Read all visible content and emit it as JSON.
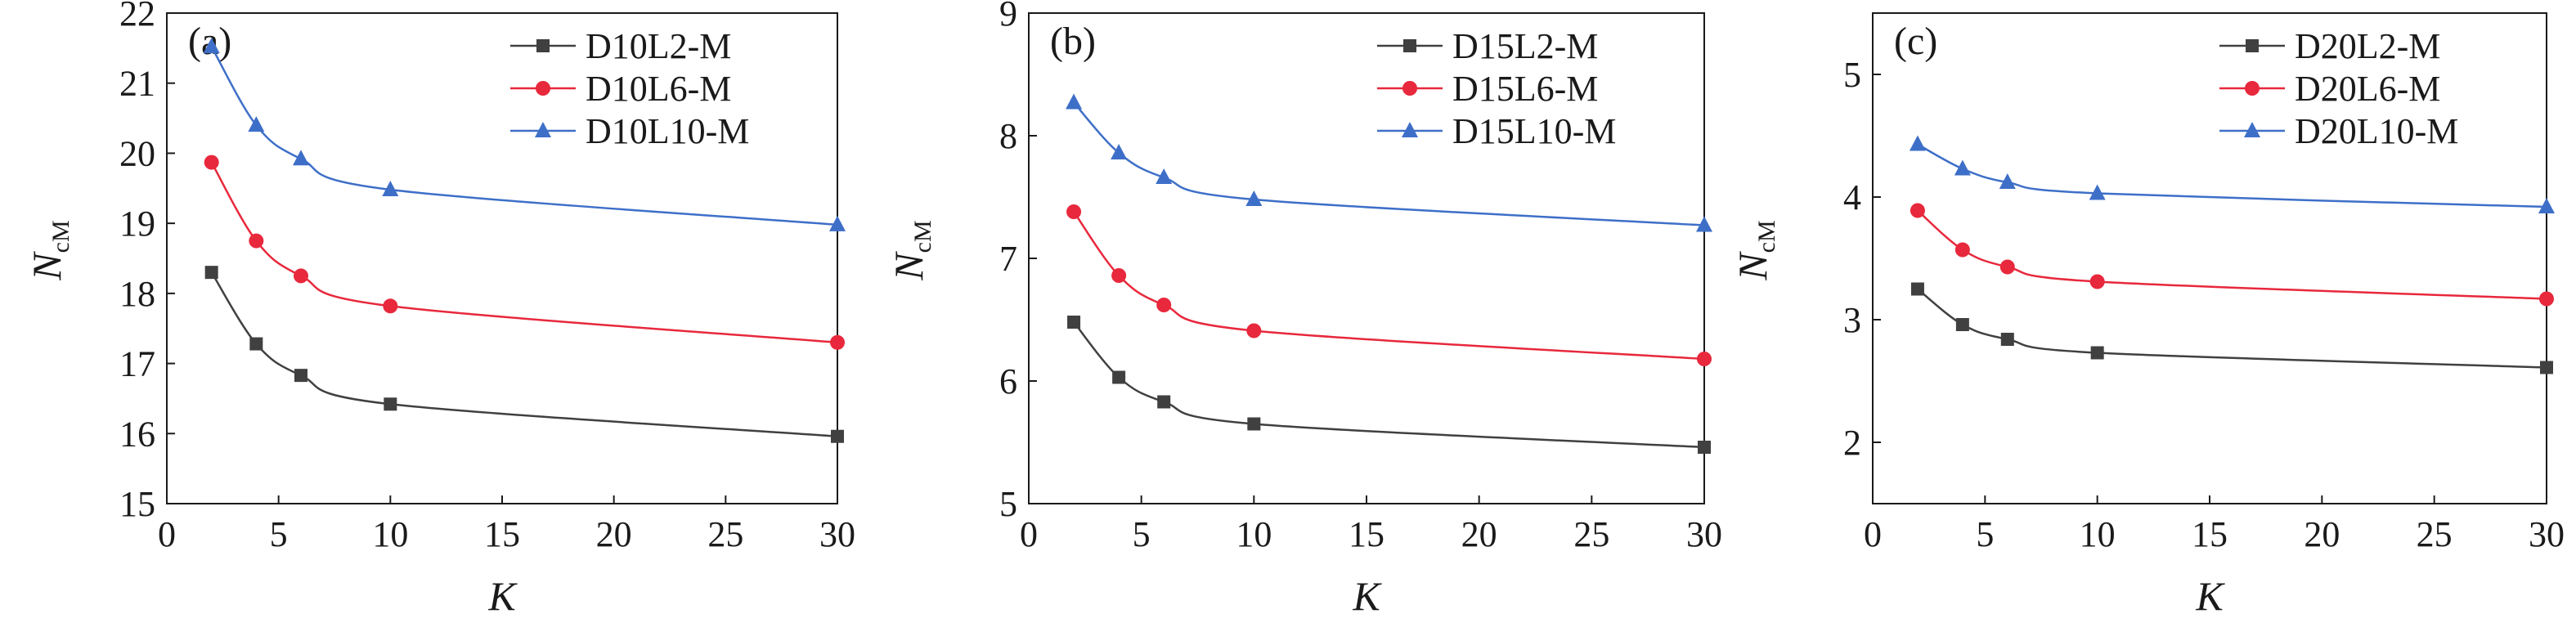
{
  "chart_data": [
    {
      "type": "line",
      "panel_label": "(a)",
      "xlabel": "K",
      "ylabel": {
        "main": "N",
        "sub": "cM"
      },
      "xlim": [
        0,
        30
      ],
      "ylim": [
        15,
        22
      ],
      "xticks": [
        0,
        5,
        10,
        15,
        20,
        25,
        30
      ],
      "yticks": [
        15,
        16,
        17,
        18,
        19,
        20,
        21,
        22
      ],
      "grid": false,
      "legend_position": "top-right",
      "x": [
        2,
        4,
        6,
        10,
        30
      ],
      "series": [
        {
          "name": "D10L2-M",
          "marker": "square",
          "color": "#404040",
          "values": [
            18.3,
            17.28,
            16.83,
            16.42,
            15.96
          ]
        },
        {
          "name": "D10L6-M",
          "marker": "circle",
          "color": "#e8283c",
          "values": [
            19.87,
            18.75,
            18.25,
            17.82,
            17.3
          ]
        },
        {
          "name": "D10L10-M",
          "marker": "triangle",
          "color": "#3e6fc8",
          "values": [
            21.52,
            20.4,
            19.92,
            19.48,
            18.98
          ]
        }
      ]
    },
    {
      "type": "line",
      "panel_label": "(b)",
      "xlabel": "K",
      "ylabel": {
        "main": "N",
        "sub": "cM"
      },
      "xlim": [
        0,
        30
      ],
      "ylim": [
        5,
        9
      ],
      "xticks": [
        0,
        5,
        10,
        15,
        20,
        25,
        30
      ],
      "yticks": [
        5,
        6,
        7,
        8,
        9
      ],
      "grid": false,
      "legend_position": "top-right",
      "x": [
        2,
        4,
        6,
        10,
        30
      ],
      "series": [
        {
          "name": "D15L2-M",
          "marker": "square",
          "color": "#404040",
          "values": [
            6.48,
            6.03,
            5.83,
            5.65,
            5.46
          ]
        },
        {
          "name": "D15L6-M",
          "marker": "circle",
          "color": "#e8283c",
          "values": [
            7.38,
            6.86,
            6.62,
            6.41,
            6.18
          ]
        },
        {
          "name": "D15L10-M",
          "marker": "triangle",
          "color": "#3e6fc8",
          "values": [
            8.27,
            7.86,
            7.66,
            7.48,
            7.27
          ]
        }
      ]
    },
    {
      "type": "line",
      "panel_label": "(c)",
      "xlabel": "K",
      "ylabel": {
        "main": "N",
        "sub": "cM"
      },
      "xlim": [
        0,
        30
      ],
      "ylim": [
        1.5,
        5.5
      ],
      "xticks": [
        0,
        5,
        10,
        15,
        20,
        25,
        30
      ],
      "yticks": [
        2,
        3,
        4,
        5
      ],
      "grid": false,
      "legend_position": "top-right",
      "x": [
        2,
        4,
        6,
        10,
        30
      ],
      "series": [
        {
          "name": "D20L2-M",
          "marker": "square",
          "color": "#404040",
          "values": [
            3.25,
            2.96,
            2.84,
            2.73,
            2.61
          ]
        },
        {
          "name": "D20L6-M",
          "marker": "circle",
          "color": "#e8283c",
          "values": [
            3.89,
            3.57,
            3.43,
            3.31,
            3.17
          ]
        },
        {
          "name": "D20L10-M",
          "marker": "triangle",
          "color": "#3e6fc8",
          "values": [
            4.43,
            4.23,
            4.12,
            4.03,
            3.92
          ]
        }
      ]
    }
  ]
}
